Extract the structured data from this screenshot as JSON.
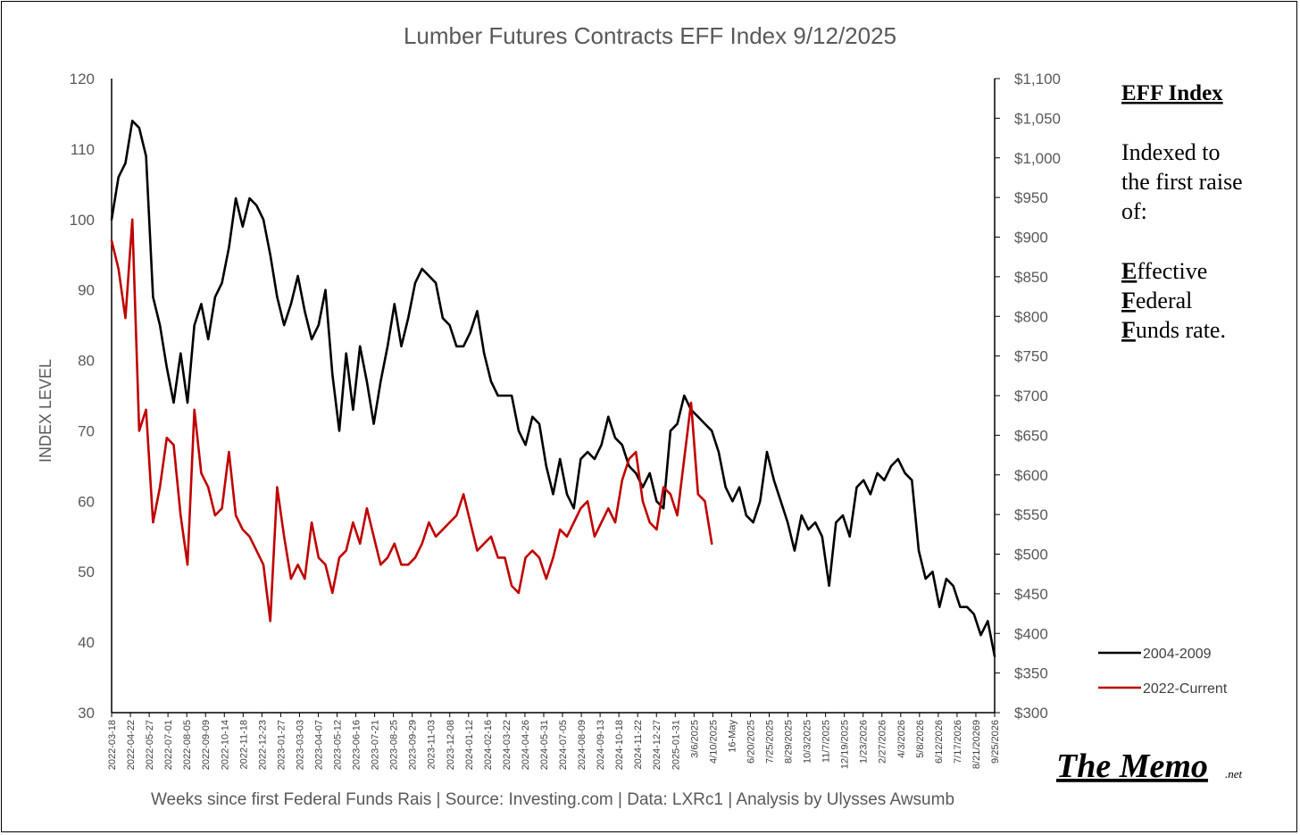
{
  "chart_data": {
    "type": "line",
    "title": "Lumber Futures Contracts  EFF Index 9/12/2025",
    "ylabel": "INDEX LEVEL",
    "xlabel": "Weeks since first Federal Funds Rais | Source: Investing.com | Data: LXRc1 | Analysis by Ulysses Awsumb",
    "ylim": [
      30,
      120
    ],
    "y_ticks": [
      "120",
      "110",
      "100",
      "90",
      "80",
      "70",
      "60",
      "50",
      "40",
      "30"
    ],
    "y2_ticks": [
      "$1,100",
      "$1,050",
      "$1,000",
      "$950",
      "$900",
      "$850",
      "$800",
      "$750",
      "$700",
      "$650",
      "$600",
      "$550",
      "$500",
      "$450",
      "$400",
      "$350",
      "$300"
    ],
    "x_ticks": [
      "2022-03-18",
      "2022-04-22",
      "2022-05-27",
      "2022-07-01",
      "2022-08-05",
      "2022-09-09",
      "2022-10-14",
      "2022-11-18",
      "2022-12-23",
      "2023-01-27",
      "2023-03-03",
      "2023-04-07",
      "2023-05-12",
      "2023-06-16",
      "2023-07-21",
      "2023-08-25",
      "2023-09-29",
      "2023-11-03",
      "2023-12-08",
      "2024-01-12",
      "2024-02-16",
      "2024-03-22",
      "2024-04-26",
      "2024-05-31",
      "2024-07-05",
      "2024-08-09",
      "2024-09-13",
      "2024-10-18",
      "2024-11-22",
      "2024-12-27",
      "2025-01-31",
      "3/6/2025",
      "4/10/2025",
      "16-May",
      "6/20/2025",
      "7/25/2025",
      "8/29/2025",
      "10/3/2025",
      "11/7/2025",
      "12/19/2025",
      "1/23/2026",
      "2/27/2026",
      "4/3/2026",
      "5/8/2026",
      "6/12/2026",
      "7/17/2026",
      "8/21/20269",
      "9/25/2026"
    ],
    "series": [
      {
        "name": "2004-2009",
        "color": "#000000",
        "values": [
          100,
          106,
          108,
          114,
          113,
          109,
          89,
          85,
          79,
          74,
          81,
          74,
          85,
          88,
          83,
          89,
          91,
          96,
          103,
          99,
          103,
          102,
          100,
          95,
          89,
          85,
          88,
          92,
          87,
          83,
          85,
          90,
          78,
          70,
          81,
          73,
          82,
          77,
          71,
          77,
          82,
          88,
          82,
          86,
          91,
          93,
          92,
          91,
          86,
          85,
          82,
          82,
          84,
          87,
          81,
          77,
          75,
          75,
          75,
          70,
          68,
          72,
          71,
          65,
          61,
          66,
          61,
          59,
          66,
          67,
          66,
          68,
          72,
          69,
          68,
          65,
          64,
          62,
          64,
          60,
          59,
          70,
          71,
          75,
          73,
          72,
          71,
          70,
          67,
          62,
          60,
          62,
          58,
          57,
          60,
          67,
          63,
          60,
          57,
          53,
          58,
          56,
          57,
          55,
          48,
          57,
          58,
          55,
          62,
          63,
          61,
          64,
          63,
          65,
          66,
          64,
          63,
          53,
          49,
          50,
          45,
          49,
          48,
          45,
          45,
          44,
          41,
          43,
          38
        ]
      },
      {
        "name": "2022-Current",
        "color": "#c00000",
        "values": [
          97,
          93,
          86,
          100,
          70,
          73,
          57,
          62,
          69,
          68,
          58,
          51,
          73,
          64,
          62,
          58,
          59,
          67,
          58,
          56,
          55,
          53,
          51,
          43,
          62,
          55,
          49,
          51,
          49,
          57,
          52,
          51,
          47,
          52,
          53,
          57,
          54,
          59,
          55,
          51,
          52,
          54,
          51,
          51,
          52,
          54,
          57,
          55,
          56,
          57,
          58,
          61,
          57,
          53,
          54,
          55,
          52,
          52,
          48,
          47,
          52,
          53,
          52,
          49,
          52,
          56,
          55,
          57,
          59,
          60,
          55,
          57,
          59,
          57,
          63,
          66,
          67,
          60,
          57,
          56,
          62,
          61,
          58,
          66,
          74,
          61,
          60,
          54
        ]
      }
    ],
    "legend": [
      "2004-2009",
      "2022-Current"
    ],
    "legend_position": "bottom-right"
  },
  "side_note": {
    "heading": "EFF Index",
    "lines": [
      "Indexed to",
      "the first raise",
      "of:"
    ],
    "letters": [
      "E",
      "F",
      "F"
    ],
    "words_rest": [
      "ffective",
      "ederal",
      "unds rate."
    ]
  },
  "brand": {
    "name": "The Memo",
    "suffix": ".net"
  }
}
